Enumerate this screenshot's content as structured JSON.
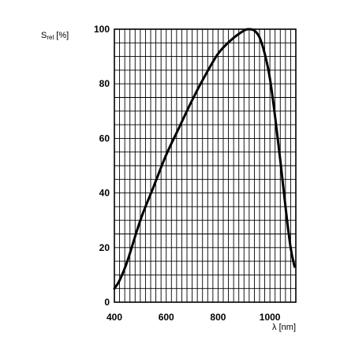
{
  "chart_data": {
    "type": "line",
    "ylabel_main": "S",
    "ylabel_sub": "rel",
    "ylabel_unit": " [%]",
    "xlabel": "λ [nm]",
    "xlim": [
      400,
      1100
    ],
    "ylim": [
      0,
      100
    ],
    "x_ticks": [
      400,
      600,
      800,
      1000
    ],
    "y_ticks": [
      0,
      20,
      40,
      60,
      80,
      100
    ],
    "grid": true,
    "series": [
      {
        "color": "#000000",
        "x": [
          400,
          420,
          450,
          500,
          550,
          600,
          650,
          700,
          750,
          800,
          850,
          900,
          920,
          940,
          960,
          980,
          1000,
          1020,
          1040,
          1060,
          1080,
          1095
        ],
        "y": [
          5,
          8,
          15,
          30,
          42,
          54,
          64,
          74,
          83,
          91,
          96,
          99.5,
          100,
          99.5,
          97,
          91,
          82,
          68,
          52,
          35,
          20,
          13
        ]
      }
    ]
  }
}
